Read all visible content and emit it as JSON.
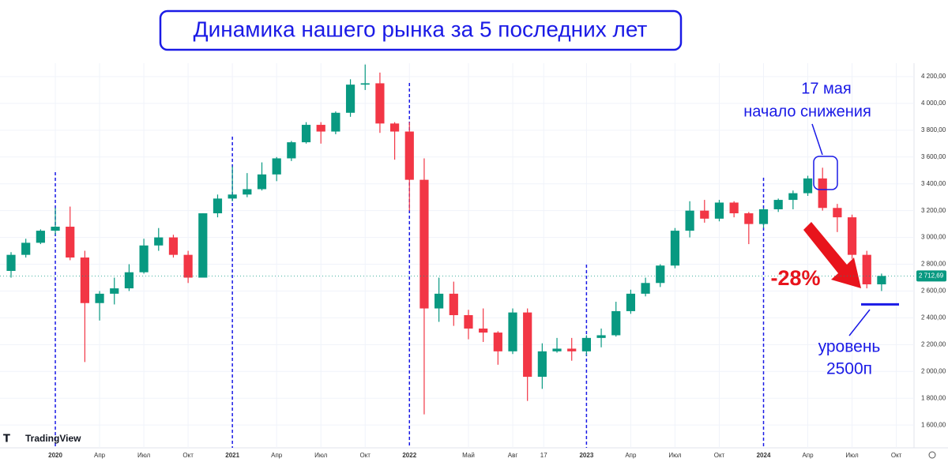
{
  "chart_data": {
    "type": "candlestick",
    "title": "Динамика нашего рынка за 5 последних лет",
    "watermark": "TradingView",
    "up_color": "#089981",
    "down_color": "#f23645",
    "candles": [
      [
        2750,
        2890,
        2700,
        2870
      ],
      [
        2870,
        2990,
        2850,
        2960
      ],
      [
        2960,
        3060,
        2950,
        3050
      ],
      [
        3050,
        3220,
        3020,
        3080
      ],
      [
        3080,
        3230,
        2830,
        2850
      ],
      [
        2850,
        2900,
        2070,
        2510
      ],
      [
        2510,
        2600,
        2380,
        2580
      ],
      [
        2580,
        2700,
        2500,
        2620
      ],
      [
        2620,
        2800,
        2600,
        2740
      ],
      [
        2740,
        2990,
        2730,
        2940
      ],
      [
        2940,
        3070,
        2900,
        3000
      ],
      [
        3000,
        3020,
        2850,
        2870
      ],
      [
        2870,
        2900,
        2660,
        2700
      ],
      [
        2700,
        3180,
        2700,
        3180
      ],
      [
        3180,
        3320,
        3150,
        3290
      ],
      [
        3290,
        3530,
        3270,
        3320
      ],
      [
        3320,
        3480,
        3300,
        3360
      ],
      [
        3360,
        3560,
        3350,
        3470
      ],
      [
        3470,
        3600,
        3420,
        3590
      ],
      [
        3590,
        3720,
        3570,
        3710
      ],
      [
        3710,
        3860,
        3700,
        3840
      ],
      [
        3840,
        3860,
        3700,
        3790
      ],
      [
        3790,
        3940,
        3770,
        3930
      ],
      [
        3930,
        4180,
        3900,
        4140
      ],
      [
        4140,
        4290,
        4100,
        4150
      ],
      [
        4150,
        4230,
        3780,
        3850
      ],
      [
        3850,
        3860,
        3580,
        3790
      ],
      [
        3790,
        3860,
        3200,
        3430
      ],
      [
        3430,
        3590,
        1680,
        2470
      ],
      [
        2470,
        2700,
        2370,
        2580
      ],
      [
        2580,
        2670,
        2340,
        2420
      ],
      [
        2420,
        2460,
        2240,
        2320
      ],
      [
        2320,
        2470,
        2220,
        2290
      ],
      [
        2290,
        2300,
        2050,
        2150
      ],
      [
        2150,
        2470,
        2130,
        2440
      ],
      [
        2440,
        2470,
        1780,
        1960
      ],
      [
        1960,
        2210,
        1870,
        2150
      ],
      [
        2150,
        2250,
        2140,
        2170
      ],
      [
        2170,
        2250,
        2080,
        2150
      ],
      [
        2150,
        2270,
        2120,
        2250
      ],
      [
        2250,
        2320,
        2180,
        2270
      ],
      [
        2270,
        2520,
        2260,
        2450
      ],
      [
        2450,
        2610,
        2430,
        2580
      ],
      [
        2580,
        2700,
        2560,
        2660
      ],
      [
        2660,
        2800,
        2630,
        2790
      ],
      [
        2790,
        3070,
        2770,
        3050
      ],
      [
        3050,
        3270,
        3000,
        3200
      ],
      [
        3200,
        3280,
        3110,
        3140
      ],
      [
        3140,
        3280,
        3120,
        3260
      ],
      [
        3260,
        3270,
        3150,
        3180
      ],
      [
        3180,
        3190,
        2950,
        3100
      ],
      [
        3100,
        3220,
        3070,
        3210
      ],
      [
        3210,
        3290,
        3190,
        3280
      ],
      [
        3280,
        3350,
        3210,
        3330
      ],
      [
        3330,
        3460,
        3310,
        3440
      ],
      [
        3440,
        3520,
        3200,
        3220
      ],
      [
        3220,
        3250,
        3040,
        3150
      ],
      [
        3150,
        3170,
        2840,
        2870
      ],
      [
        2870,
        2900,
        2620,
        2650
      ],
      [
        2650,
        2730,
        2600,
        2712.69
      ]
    ],
    "xlim": [
      -0.75,
      61.2
    ],
    "xticks": [
      {
        "value": 3,
        "label": "2020"
      },
      {
        "value": 6,
        "label": "Апр"
      },
      {
        "value": 9,
        "label": "Июл"
      },
      {
        "value": 12,
        "label": "Окт"
      },
      {
        "value": 15,
        "label": "2021"
      },
      {
        "value": 18,
        "label": "Апр"
      },
      {
        "value": 21,
        "label": "Июл"
      },
      {
        "value": 24,
        "label": "Окт"
      },
      {
        "value": 27,
        "label": "2022"
      },
      {
        "value": 31,
        "label": "Май"
      },
      {
        "value": 34,
        "label": "Авг"
      },
      {
        "value": 36.1,
        "label": "17"
      },
      {
        "value": 39,
        "label": "2023"
      },
      {
        "value": 42,
        "label": "Апр"
      },
      {
        "value": 45,
        "label": "Июл"
      },
      {
        "value": 48,
        "label": "Окт"
      },
      {
        "value": 51,
        "label": "2024"
      },
      {
        "value": 54,
        "label": "Апр"
      },
      {
        "value": 57,
        "label": "Июл"
      },
      {
        "value": 60,
        "label": "Окт"
      }
    ],
    "year_lines": [
      3,
      15,
      27,
      39,
      51
    ],
    "ylim": [
      1430,
      4300
    ],
    "yticks": [
      {
        "value": 1600,
        "label": "1 600,00"
      },
      {
        "value": 1800,
        "label": "1 800,00"
      },
      {
        "value": 2000,
        "label": "2 000,00"
      },
      {
        "value": 2200,
        "label": "2 200,00"
      },
      {
        "value": 2400,
        "label": "2 400,00"
      },
      {
        "value": 2600,
        "label": "2 600,00"
      },
      {
        "value": 2800,
        "label": "2 800,00"
      },
      {
        "value": 3000,
        "label": "3 000,00"
      },
      {
        "value": 3200,
        "label": "3 200,00"
      },
      {
        "value": 3400,
        "label": "3 400,00"
      },
      {
        "value": 3600,
        "label": "3 600,00"
      },
      {
        "value": 3800,
        "label": "3 800,00"
      },
      {
        "value": 4000,
        "label": "4 000,00"
      },
      {
        "value": 4200,
        "label": "4 200,00"
      }
    ],
    "last_price": {
      "value": 2712.69,
      "label": "2 712,69"
    },
    "level": {
      "value": 2500,
      "label_line1": "уровень",
      "label_line2": "2500п"
    },
    "annotation": {
      "line1": "17 мая",
      "line2": "начало снижения"
    },
    "change_label": "-28%"
  }
}
